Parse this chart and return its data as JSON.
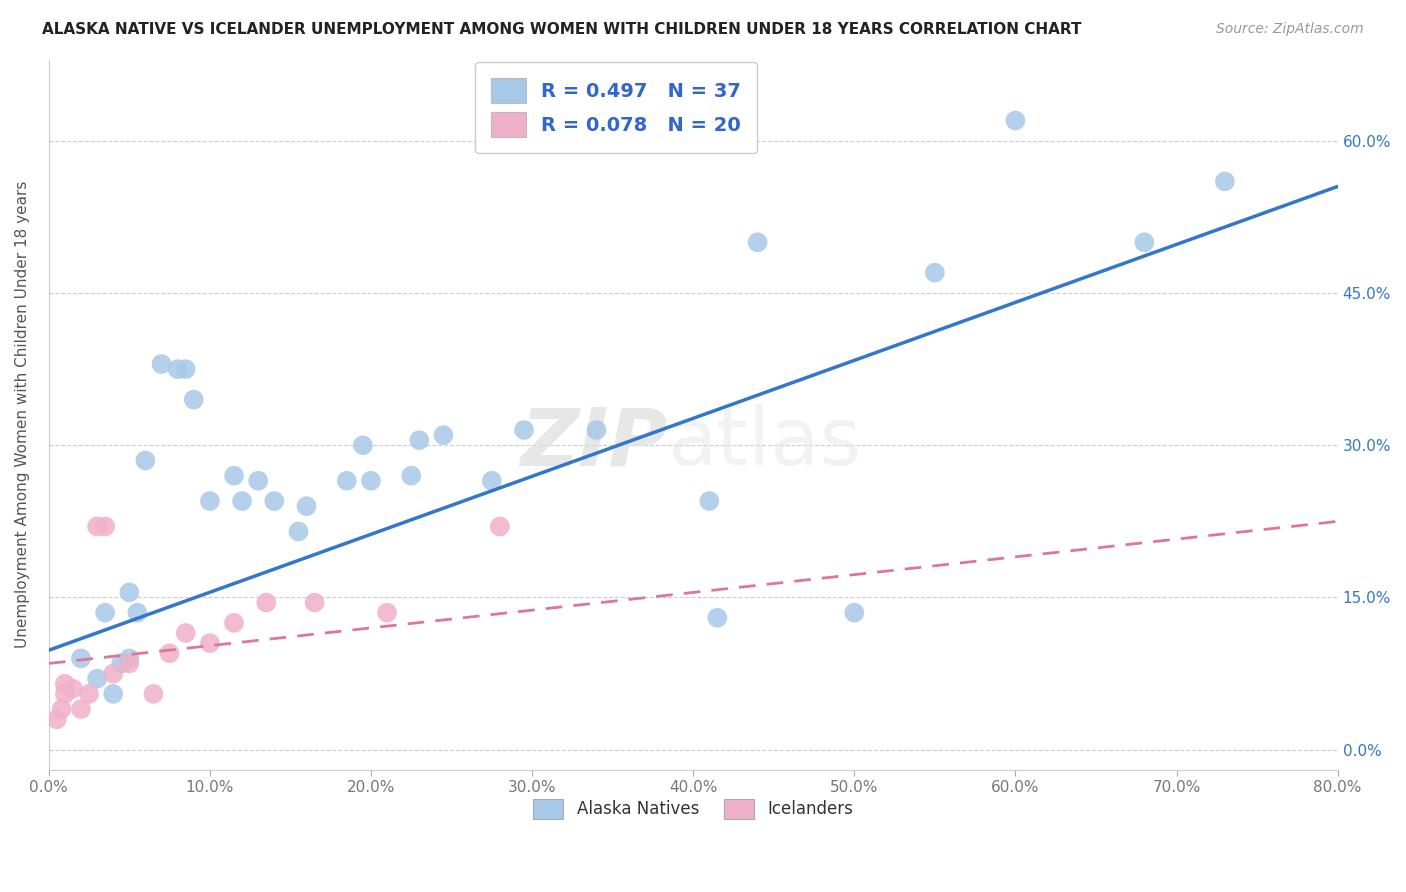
{
  "title": "ALASKA NATIVE VS ICELANDER UNEMPLOYMENT AMONG WOMEN WITH CHILDREN UNDER 18 YEARS CORRELATION CHART",
  "source": "Source: ZipAtlas.com",
  "ylabel": "Unemployment Among Women with Children Under 18 years",
  "xlim": [
    0.0,
    0.8
  ],
  "ylim": [
    -0.02,
    0.68
  ],
  "x_ticks": [
    0.0,
    0.1,
    0.2,
    0.3,
    0.4,
    0.5,
    0.6,
    0.7,
    0.8
  ],
  "y_ticks": [
    0.0,
    0.15,
    0.3,
    0.45,
    0.6
  ],
  "alaska_R": 0.497,
  "alaska_N": 37,
  "icelander_R": 0.078,
  "icelander_N": 20,
  "alaska_color": "#a8c8e8",
  "icelander_color": "#f0b0c8",
  "alaska_line_color": "#3377cc",
  "icelander_line_color": "#dd7799",
  "watermark_zip": "ZIP",
  "watermark_atlas": "atlas",
  "alaska_points_x": [
    0.02,
    0.03,
    0.035,
    0.04,
    0.045,
    0.05,
    0.05,
    0.055,
    0.06,
    0.07,
    0.08,
    0.085,
    0.09,
    0.1,
    0.115,
    0.12,
    0.13,
    0.14,
    0.155,
    0.16,
    0.185,
    0.195,
    0.2,
    0.225,
    0.245,
    0.275,
    0.295,
    0.34,
    0.41,
    0.415,
    0.44,
    0.5,
    0.55,
    0.6,
    0.68,
    0.73,
    0.23
  ],
  "alaska_points_y": [
    0.09,
    0.07,
    0.135,
    0.055,
    0.085,
    0.09,
    0.155,
    0.135,
    0.285,
    0.38,
    0.375,
    0.375,
    0.345,
    0.245,
    0.27,
    0.245,
    0.265,
    0.245,
    0.215,
    0.24,
    0.265,
    0.3,
    0.265,
    0.27,
    0.31,
    0.265,
    0.315,
    0.315,
    0.245,
    0.13,
    0.5,
    0.135,
    0.47,
    0.62,
    0.5,
    0.56,
    0.305
  ],
  "icelander_points_x": [
    0.005,
    0.008,
    0.01,
    0.01,
    0.015,
    0.02,
    0.025,
    0.03,
    0.035,
    0.04,
    0.05,
    0.065,
    0.075,
    0.085,
    0.1,
    0.115,
    0.135,
    0.165,
    0.21,
    0.28
  ],
  "icelander_points_y": [
    0.03,
    0.04,
    0.055,
    0.065,
    0.06,
    0.04,
    0.055,
    0.22,
    0.22,
    0.075,
    0.085,
    0.055,
    0.095,
    0.115,
    0.105,
    0.125,
    0.145,
    0.145,
    0.135,
    0.22
  ],
  "alaska_line_x0": 0.0,
  "alaska_line_y0": 0.098,
  "alaska_line_x1": 0.8,
  "alaska_line_y1": 0.555,
  "icelander_line_x0": 0.0,
  "icelander_line_y0": 0.085,
  "icelander_line_x1": 0.8,
  "icelander_line_y1": 0.225
}
